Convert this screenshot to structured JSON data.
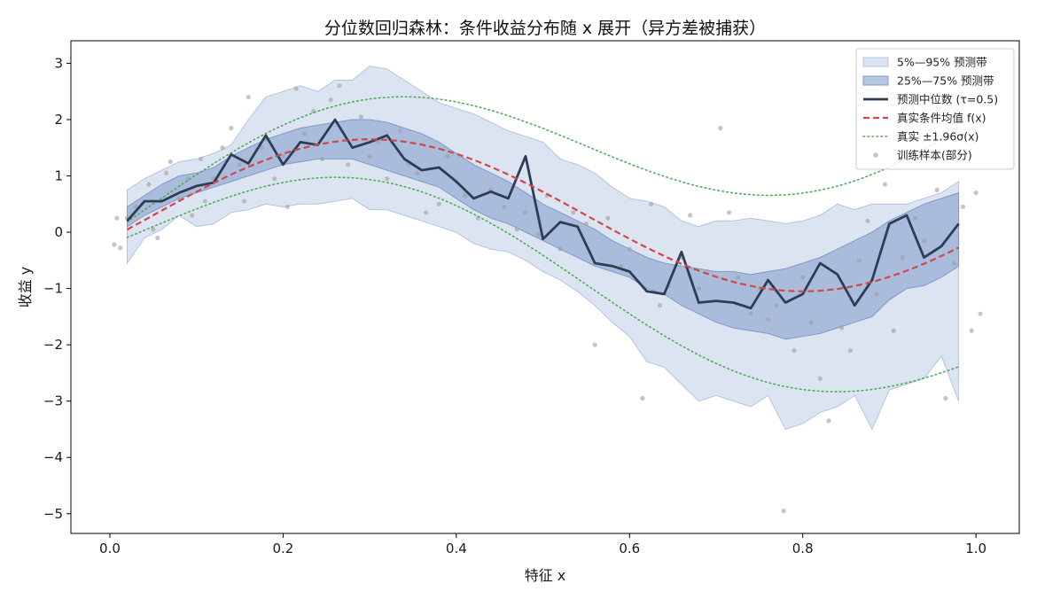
{
  "chart_data": {
    "type": "line",
    "title": "分位数回归森林：条件收益分布随 x 展开（异方差被捕获）",
    "xlabel": "特征 x",
    "ylabel": "收益 y",
    "xlim": [
      -0.045,
      1.05
    ],
    "ylim": [
      -5.35,
      3.4
    ],
    "xticks": [
      0.0,
      0.2,
      0.4,
      0.6,
      0.8,
      1.0
    ],
    "xtick_labels": [
      "0.0",
      "0.2",
      "0.4",
      "0.6",
      "0.8",
      "1.0"
    ],
    "yticks": [
      -5,
      -4,
      -3,
      -2,
      -1,
      0,
      1,
      2,
      3
    ],
    "ytick_labels": [
      "−5",
      "−4",
      "−3",
      "−2",
      "−1",
      "0",
      "1",
      "2",
      "3"
    ],
    "grid": false,
    "legend_position": "top-right",
    "colors": {
      "band_outer": "#b4c3e0",
      "band_inner": "#7f9ac8",
      "median": "#2c3e55",
      "true_mean": "#d0484a",
      "true_bounds": "#4daa57",
      "samples": "#9e9e9e"
    },
    "x": [
      0.02,
      0.04,
      0.06,
      0.08,
      0.1,
      0.12,
      0.14,
      0.16,
      0.18,
      0.2,
      0.22,
      0.24,
      0.26,
      0.28,
      0.3,
      0.32,
      0.34,
      0.36,
      0.38,
      0.4,
      0.42,
      0.44,
      0.46,
      0.48,
      0.5,
      0.52,
      0.54,
      0.56,
      0.58,
      0.6,
      0.62,
      0.64,
      0.66,
      0.68,
      0.7,
      0.72,
      0.74,
      0.76,
      0.78,
      0.8,
      0.82,
      0.84,
      0.86,
      0.88,
      0.9,
      0.92,
      0.94,
      0.96,
      0.98
    ],
    "series": [
      {
        "name": "5%—95% 预测带",
        "role": "band_outer",
        "lower": [
          -0.55,
          -0.1,
          0.05,
          0.3,
          0.1,
          0.15,
          0.35,
          0.4,
          0.5,
          0.45,
          0.5,
          0.5,
          0.55,
          0.6,
          0.4,
          0.4,
          0.3,
          0.2,
          0.1,
          0.0,
          -0.2,
          -0.3,
          -0.35,
          -0.5,
          -0.7,
          -0.85,
          -1.05,
          -1.3,
          -1.6,
          -1.85,
          -2.3,
          -2.4,
          -2.7,
          -3.0,
          -2.9,
          -3.0,
          -3.1,
          -2.9,
          -3.5,
          -3.4,
          -3.2,
          -3.1,
          -2.9,
          -3.5,
          -2.8,
          -2.7,
          -2.6,
          -2.2,
          -3.0
        ],
        "upper": [
          0.75,
          0.95,
          1.1,
          1.25,
          1.3,
          1.4,
          1.55,
          2.0,
          2.4,
          2.5,
          2.6,
          2.5,
          2.7,
          2.7,
          2.95,
          2.9,
          2.7,
          2.5,
          2.3,
          2.2,
          2.1,
          1.95,
          1.8,
          1.7,
          1.6,
          1.3,
          1.2,
          1.05,
          0.8,
          0.6,
          0.55,
          0.45,
          0.2,
          0.1,
          0.2,
          0.2,
          0.25,
          0.2,
          0.15,
          0.2,
          0.3,
          0.5,
          0.4,
          0.5,
          0.5,
          0.5,
          0.6,
          0.7,
          0.9
        ]
      },
      {
        "name": "25%—75% 预测带",
        "role": "band_inner",
        "lower": [
          0.1,
          0.3,
          0.45,
          0.6,
          0.7,
          0.8,
          0.9,
          1.0,
          1.1,
          1.2,
          1.25,
          1.3,
          1.3,
          1.3,
          1.2,
          1.1,
          1.0,
          0.9,
          0.8,
          0.6,
          0.4,
          0.25,
          0.15,
          0.0,
          -0.15,
          -0.3,
          -0.45,
          -0.6,
          -0.7,
          -0.8,
          -1.0,
          -1.1,
          -1.3,
          -1.45,
          -1.6,
          -1.7,
          -1.75,
          -1.8,
          -1.9,
          -1.85,
          -1.8,
          -1.7,
          -1.6,
          -1.5,
          -1.2,
          -1.0,
          -0.95,
          -0.8,
          -0.6
        ],
        "upper": [
          0.45,
          0.65,
          0.85,
          1.0,
          1.05,
          1.15,
          1.35,
          1.5,
          1.65,
          1.75,
          1.85,
          1.9,
          1.95,
          2.0,
          2.0,
          1.95,
          1.85,
          1.75,
          1.6,
          1.4,
          1.2,
          1.05,
          0.9,
          0.7,
          0.5,
          0.35,
          0.2,
          0.05,
          -0.15,
          -0.3,
          -0.45,
          -0.55,
          -0.6,
          -0.65,
          -0.7,
          -0.7,
          -0.75,
          -0.7,
          -0.65,
          -0.55,
          -0.45,
          -0.3,
          -0.15,
          0.0,
          0.2,
          0.35,
          0.5,
          0.6,
          0.7
        ]
      },
      {
        "name": "预测中位数 (τ=0.5)",
        "role": "median",
        "values": [
          0.2,
          0.55,
          0.55,
          0.7,
          0.82,
          0.88,
          1.38,
          1.22,
          1.72,
          1.2,
          1.6,
          1.55,
          2.0,
          1.5,
          1.6,
          1.72,
          1.3,
          1.1,
          1.15,
          0.9,
          0.6,
          0.72,
          0.6,
          1.35,
          -0.12,
          0.18,
          0.1,
          -0.55,
          -0.6,
          -0.7,
          -1.05,
          -1.1,
          -0.35,
          -1.25,
          -1.22,
          -1.25,
          -1.35,
          -0.85,
          -1.25,
          -1.1,
          -0.55,
          -0.75,
          -1.3,
          -0.85,
          0.15,
          0.3,
          -0.45,
          -0.25,
          0.15
        ]
      },
      {
        "name": "真实条件均值 f(x)",
        "role": "true_mean",
        "formula": "0.3 + 1.35*sin(2*pi*(x-0.05))"
      },
      {
        "name": "真实 ±1.96σ(x)",
        "role": "true_bounds",
        "formula": "f(x) ± 1.96*(0.05 + 1.05*x)"
      },
      {
        "name": "训练样本(部分)",
        "role": "samples",
        "points": [
          [
            0.005,
            -0.22
          ],
          [
            0.008,
            0.25
          ],
          [
            0.012,
            -0.28
          ],
          [
            0.02,
            0.25
          ],
          [
            0.03,
            0.45
          ],
          [
            0.045,
            0.85
          ],
          [
            0.05,
            0.05
          ],
          [
            0.055,
            -0.1
          ],
          [
            0.065,
            1.05
          ],
          [
            0.07,
            1.25
          ],
          [
            0.08,
            0.6
          ],
          [
            0.09,
            0.95
          ],
          [
            0.095,
            0.3
          ],
          [
            0.105,
            1.3
          ],
          [
            0.11,
            0.55
          ],
          [
            0.12,
            0.95
          ],
          [
            0.13,
            1.5
          ],
          [
            0.14,
            1.85
          ],
          [
            0.15,
            1.2
          ],
          [
            0.155,
            0.55
          ],
          [
            0.16,
            2.4
          ],
          [
            0.175,
            1.5
          ],
          [
            0.18,
            1.65
          ],
          [
            0.19,
            0.95
          ],
          [
            0.2,
            1.35
          ],
          [
            0.205,
            0.45
          ],
          [
            0.215,
            2.55
          ],
          [
            0.225,
            1.75
          ],
          [
            0.235,
            2.15
          ],
          [
            0.245,
            1.3
          ],
          [
            0.255,
            2.35
          ],
          [
            0.265,
            2.6
          ],
          [
            0.275,
            1.2
          ],
          [
            0.29,
            2.05
          ],
          [
            0.3,
            1.35
          ],
          [
            0.31,
            1.6
          ],
          [
            0.32,
            0.95
          ],
          [
            0.335,
            1.8
          ],
          [
            0.345,
            1.2
          ],
          [
            0.355,
            1.05
          ],
          [
            0.365,
            0.35
          ],
          [
            0.38,
            0.5
          ],
          [
            0.39,
            1.35
          ],
          [
            0.4,
            0.9
          ],
          [
            0.41,
            0.65
          ],
          [
            0.425,
            0.25
          ],
          [
            0.44,
            0.75
          ],
          [
            0.455,
            0.45
          ],
          [
            0.47,
            0.05
          ],
          [
            0.48,
            0.35
          ],
          [
            0.495,
            -0.05
          ],
          [
            0.505,
            0.65
          ],
          [
            0.52,
            -0.3
          ],
          [
            0.535,
            0.35
          ],
          [
            0.55,
            0.15
          ],
          [
            0.56,
            -2.0
          ],
          [
            0.575,
            0.25
          ],
          [
            0.59,
            -0.6
          ],
          [
            0.6,
            -0.3
          ],
          [
            0.615,
            -2.95
          ],
          [
            0.625,
            0.5
          ],
          [
            0.635,
            -1.3
          ],
          [
            0.645,
            -0.95
          ],
          [
            0.66,
            -0.45
          ],
          [
            0.67,
            0.3
          ],
          [
            0.68,
            -1.0
          ],
          [
            0.69,
            -0.7
          ],
          [
            0.705,
            1.85
          ],
          [
            0.715,
            0.35
          ],
          [
            0.725,
            -0.8
          ],
          [
            0.74,
            -1.45
          ],
          [
            0.75,
            -1.0
          ],
          [
            0.76,
            -1.55
          ],
          [
            0.77,
            -1.3
          ],
          [
            0.778,
            -4.95
          ],
          [
            0.79,
            -2.1
          ],
          [
            0.8,
            -0.8
          ],
          [
            0.81,
            -1.6
          ],
          [
            0.82,
            -2.6
          ],
          [
            0.83,
            -3.35
          ],
          [
            0.845,
            -1.7
          ],
          [
            0.855,
            -2.1
          ],
          [
            0.865,
            -0.5
          ],
          [
            0.875,
            0.2
          ],
          [
            0.885,
            -1.1
          ],
          [
            0.895,
            0.85
          ],
          [
            0.905,
            -1.75
          ],
          [
            0.915,
            -0.45
          ],
          [
            0.93,
            0.25
          ],
          [
            0.94,
            -0.15
          ],
          [
            0.955,
            0.75
          ],
          [
            0.965,
            -2.95
          ],
          [
            0.975,
            -0.55
          ],
          [
            0.985,
            0.45
          ],
          [
            0.995,
            -1.75
          ],
          [
            1.0,
            0.7
          ],
          [
            1.005,
            -1.45
          ]
        ]
      }
    ]
  }
}
